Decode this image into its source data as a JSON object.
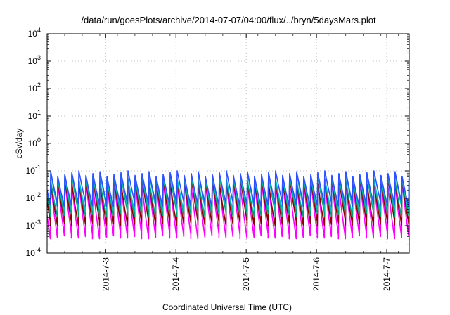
{
  "chart_data": {
    "type": "line",
    "title": "/data/run/goesPlots/archive/2014-07-07/04:00/flux/../bryn/5daysMars.plot",
    "xlabel": "Coordinated Universal Time (UTC)",
    "ylabel": "cSv/day",
    "y_scale": "log",
    "ylim": [
      0.0001,
      10000
    ],
    "y_ticks": [
      {
        "base": "10",
        "exp": "-4"
      },
      {
        "base": "10",
        "exp": "-3"
      },
      {
        "base": "10",
        "exp": "-2"
      },
      {
        "base": "10",
        "exp": "-1"
      },
      {
        "base": "10",
        "exp": "0"
      },
      {
        "base": "10",
        "exp": "1"
      },
      {
        "base": "10",
        "exp": "2"
      },
      {
        "base": "10",
        "exp": "3"
      },
      {
        "base": "10",
        "exp": "4"
      }
    ],
    "x_range": [
      "2014-07-02T04:00",
      "2014-07-07T04:00"
    ],
    "x_tick_labels": [
      "2014-7-3",
      "2014-7-4",
      "2014-7-5",
      "2014-7-6",
      "2014-7-7"
    ],
    "grid": true,
    "pattern": "sawtooth, about 10 cycles per day (each ~2.4 h), sharp rise then gradual decay",
    "series": [
      {
        "color": "#ff00ff",
        "peak": 0.035,
        "trough": 0.0004
      },
      {
        "color": "#8b0000",
        "peak": 0.045,
        "trough": 0.0012
      },
      {
        "color": "#009e73",
        "peak": 0.055,
        "trough": 0.0025
      },
      {
        "color": "#00c0c0",
        "peak": 0.065,
        "trough": 0.004
      },
      {
        "color": "#3050ff",
        "peak": 0.08,
        "trough": 0.006
      }
    ]
  }
}
